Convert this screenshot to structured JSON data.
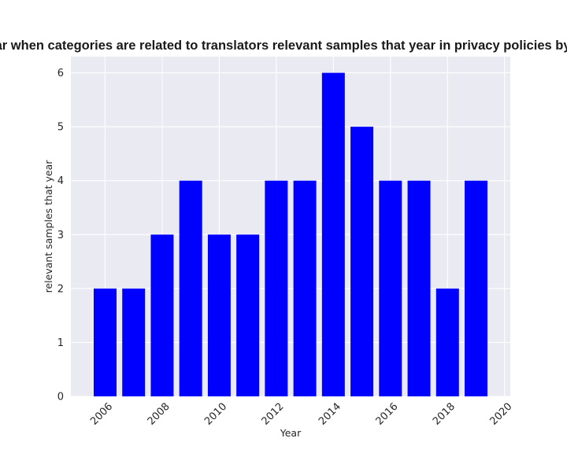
{
  "chart_data": {
    "type": "bar",
    "title": "Year when categories are related to translators relevant samples that year in privacy policies by Year",
    "xlabel": "Year",
    "ylabel": "relevant samples that year",
    "x": [
      2006,
      2007,
      2008,
      2009,
      2010,
      2011,
      2012,
      2013,
      2014,
      2015,
      2016,
      2017,
      2018,
      2019
    ],
    "values": [
      2,
      2,
      3,
      4,
      3,
      3,
      4,
      4,
      6,
      5,
      4,
      4,
      2,
      4
    ],
    "xlim": [
      2004.8,
      2020.2
    ],
    "ylim": [
      0,
      6.3
    ],
    "xticks": [
      2006,
      2008,
      2010,
      2012,
      2014,
      2016,
      2018,
      2020
    ],
    "yticks": [
      0,
      1,
      2,
      3,
      4,
      5,
      6
    ],
    "bar_width": 0.8,
    "grid": true,
    "colors": {
      "bar": "#0000ff",
      "plot_background": "#eaeaf2",
      "grid": "#ffffff"
    }
  }
}
